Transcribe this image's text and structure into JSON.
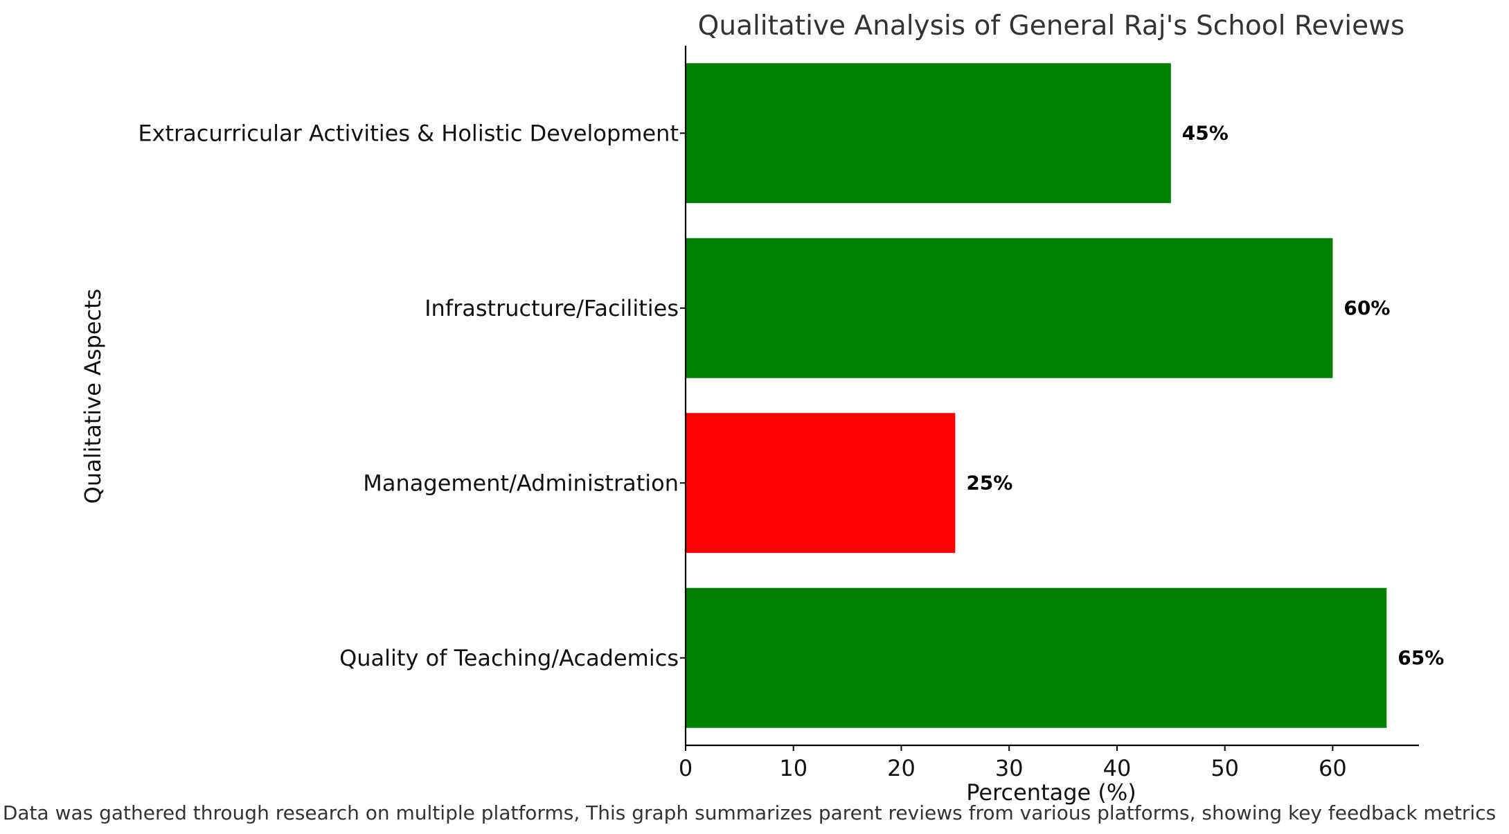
{
  "chart_data": {
    "type": "bar",
    "orientation": "horizontal",
    "title": "Qualitative Analysis of General Raj's School Reviews",
    "xlabel": "Percentage (%)",
    "ylabel": "Qualitative Aspects",
    "xlim": [
      0,
      68
    ],
    "xticks": [
      0,
      10,
      20,
      30,
      40,
      50,
      60
    ],
    "categories": [
      "Quality of Teaching/Academics",
      "Management/Administration",
      "Infrastructure/Facilities",
      "Extracurricular Activities & Holistic Development"
    ],
    "values": [
      65,
      25,
      60,
      45
    ],
    "value_labels": [
      "65%",
      "25%",
      "60%",
      "45%"
    ],
    "colors": [
      "#008000",
      "#ff0000",
      "#008000",
      "#008000"
    ],
    "grid": false,
    "legend": "none"
  },
  "caption": "Data was gathered through research on multiple platforms, This graph summarizes parent reviews from various platforms, showing key feedback metrics"
}
